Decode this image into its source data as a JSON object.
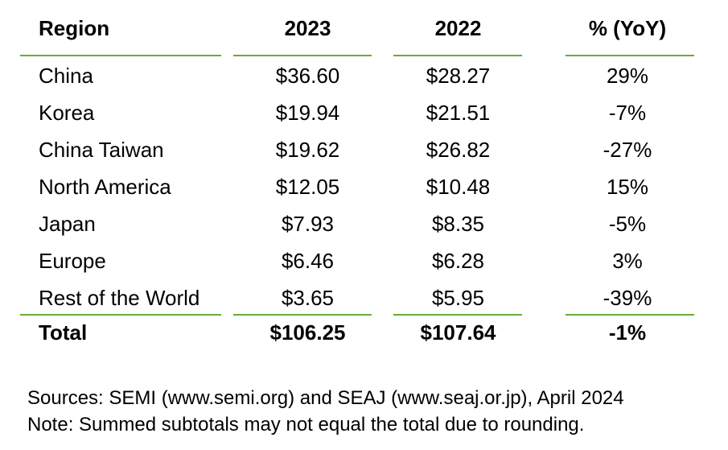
{
  "table": {
    "headers": [
      "Region",
      "2023",
      "2022",
      "% (YoY)"
    ],
    "rows": [
      [
        "China",
        "$36.60",
        "$28.27",
        "29%"
      ],
      [
        "Korea",
        "$19.94",
        "$21.51",
        "-7%"
      ],
      [
        "China Taiwan",
        "$19.62",
        "$26.82",
        "-27%"
      ],
      [
        "North America",
        "$12.05",
        "$10.48",
        "15%"
      ],
      [
        "Japan",
        "$7.93",
        "$8.35",
        "-5%"
      ],
      [
        "Europe",
        "$6.46",
        "$6.28",
        "3%"
      ],
      [
        "Rest of the World",
        "$3.65",
        "$5.95",
        "-39%"
      ]
    ],
    "total": [
      "Total",
      "$106.25",
      "$107.64",
      "-1%"
    ],
    "rule_color": "#6aaa3a"
  },
  "notes": {
    "sources": "Sources: SEMI (www.semi.org) and SEAJ (www.seaj.or.jp), April 2024",
    "note": "Note: Summed subtotals may not equal the total due to rounding."
  }
}
